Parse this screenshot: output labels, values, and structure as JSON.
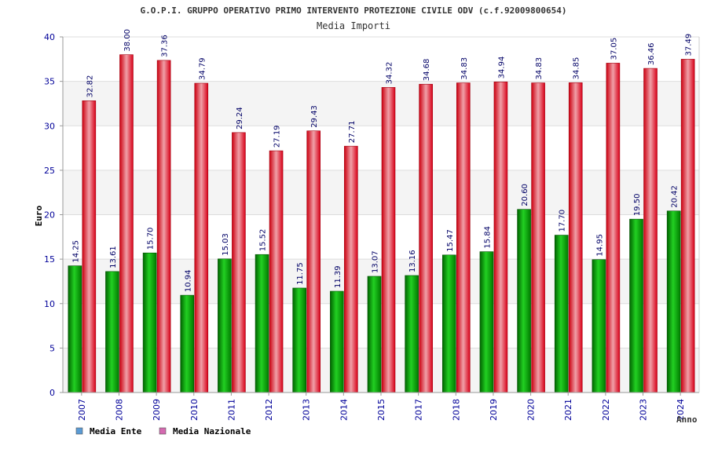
{
  "chart_data": {
    "type": "bar",
    "title": "G.O.P.I. GRUPPO OPERATIVO PRIMO INTERVENTO PROTEZIONE CIVILE ODV (c.f.92009800654)",
    "subtitle": "Media Importi",
    "xlabel": "Anno",
    "ylabel": "Euro",
    "ylim": [
      0,
      40
    ],
    "yticks": [
      "0",
      "5",
      "10",
      "15",
      "20",
      "25",
      "30",
      "35",
      "40"
    ],
    "categories": [
      "2007",
      "2008",
      "2009",
      "2010",
      "2011",
      "2012",
      "2013",
      "2014",
      "2015",
      "2017",
      "2018",
      "2019",
      "2020",
      "2021",
      "2022",
      "2023",
      "2024"
    ],
    "series": [
      {
        "name": "Media Ente",
        "color": "#00a000",
        "values": [
          14.25,
          13.61,
          15.7,
          10.94,
          15.03,
          15.52,
          11.75,
          11.39,
          13.07,
          13.16,
          15.47,
          15.84,
          20.6,
          17.7,
          14.95,
          19.5,
          20.42
        ],
        "labels": [
          "14.25",
          "13.61",
          "15.70",
          "10.94",
          "15.03",
          "15.52",
          "11.75",
          "11.39",
          "13.07",
          "13.16",
          "15.47",
          "15.84",
          "20.60",
          "17.70",
          "14.95",
          "19.50",
          "20.42"
        ]
      },
      {
        "name": "Media Nazionale",
        "color": "#e8202a",
        "values": [
          32.82,
          38.0,
          37.36,
          34.79,
          29.24,
          27.19,
          29.43,
          27.71,
          34.32,
          34.68,
          34.83,
          34.94,
          34.83,
          34.85,
          37.05,
          36.46,
          37.49
        ],
        "labels": [
          "32.82",
          "38.00",
          "37.36",
          "34.79",
          "29.24",
          "27.19",
          "29.43",
          "27.71",
          "34.32",
          "34.68",
          "34.83",
          "34.94",
          "34.83",
          "34.85",
          "37.05",
          "36.46",
          "37.49"
        ]
      }
    ],
    "legend": [
      {
        "label": "Media Ente",
        "color": "#5b9bd5"
      },
      {
        "label": "Media Nazionale",
        "color": "#d46ab0"
      }
    ],
    "grid": true,
    "legend_position": "bottom-left"
  }
}
